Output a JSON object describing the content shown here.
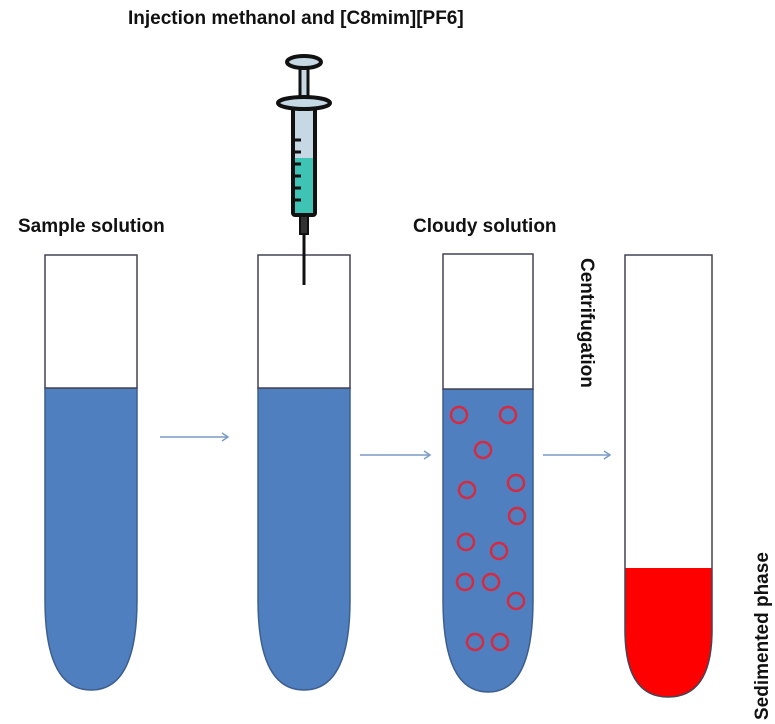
{
  "title": "Injection methanol and [C8mim][PF6]",
  "labels": {
    "sample": "Sample solution",
    "cloudy": "Cloudy solution",
    "centrifugation": "Centrifugation",
    "sedimented": "Sedimented phase"
  },
  "colors": {
    "solution": "#4f7fbf",
    "droplet": "#d62a40",
    "sediment": "#ff0000",
    "syringe_liquid": "#3fc3b5",
    "arrow": "#7a9cc6"
  }
}
